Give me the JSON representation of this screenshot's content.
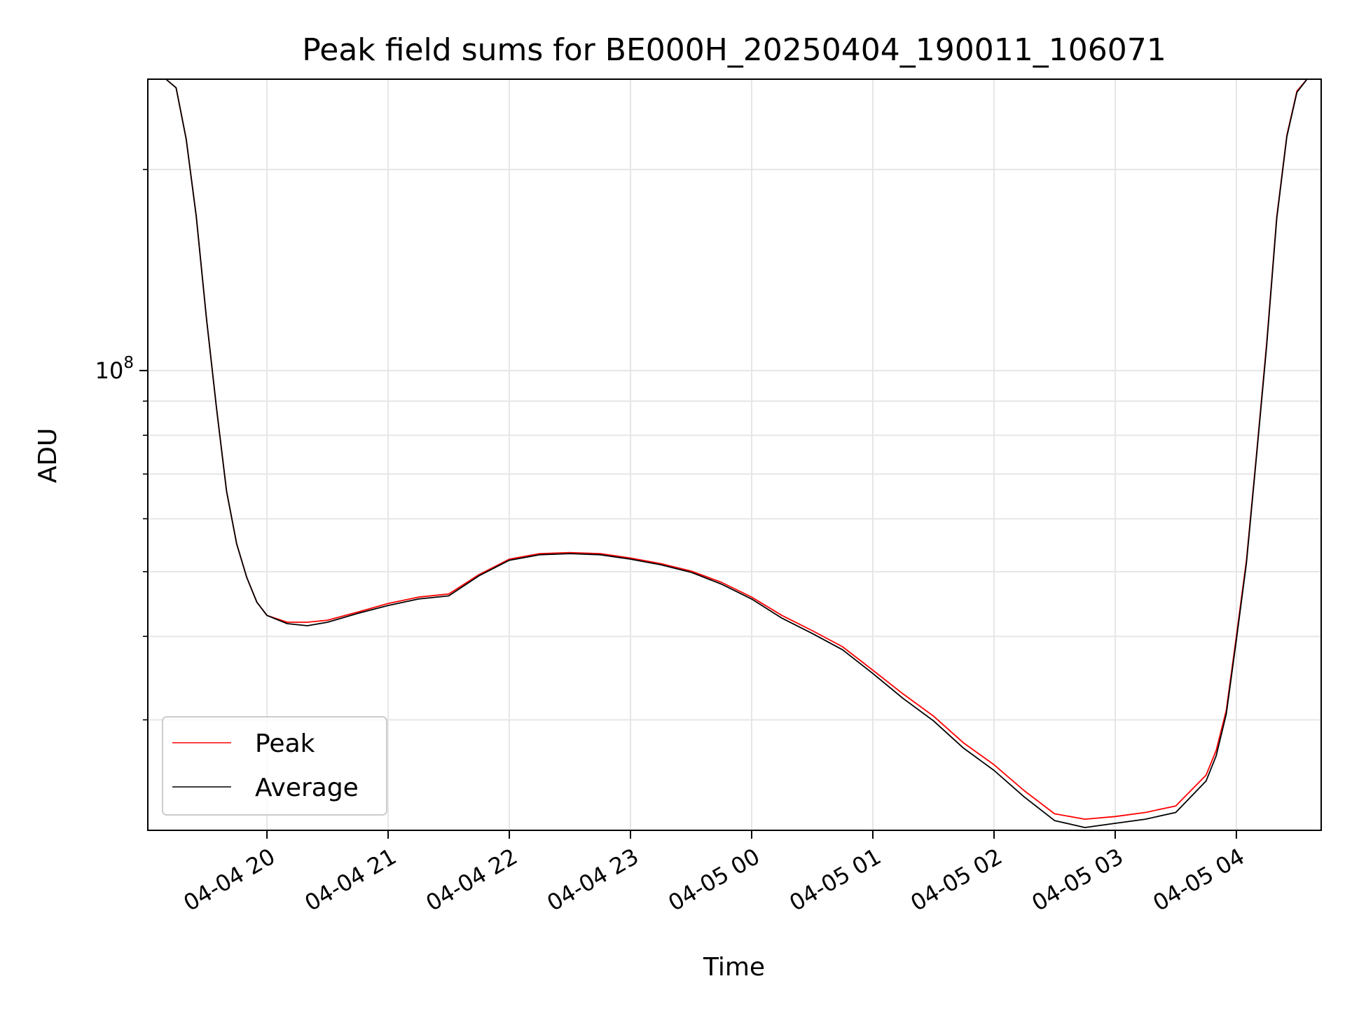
{
  "chart_data": {
    "type": "line",
    "title": "Peak field sums for BE000H_20250404_190011_106071",
    "xlabel": "Time",
    "ylabel": "ADU",
    "yscale": "log",
    "grid": true,
    "legend_position": "lower-left",
    "xlim": [
      "2025-04-04 19:01",
      "2025-04-05 04:42"
    ],
    "ylim": [
      20500000,
      273000000
    ],
    "x_ticks": [
      {
        "value": "2025-04-04 20:00",
        "label": "04-04 20"
      },
      {
        "value": "2025-04-04 21:00",
        "label": "04-04 21"
      },
      {
        "value": "2025-04-04 22:00",
        "label": "04-04 22"
      },
      {
        "value": "2025-04-04 23:00",
        "label": "04-04 23"
      },
      {
        "value": "2025-04-05 00:00",
        "label": "04-05 00"
      },
      {
        "value": "2025-04-05 01:00",
        "label": "04-05 01"
      },
      {
        "value": "2025-04-05 02:00",
        "label": "04-05 02"
      },
      {
        "value": "2025-04-05 03:00",
        "label": "04-05 03"
      },
      {
        "value": "2025-04-05 04:00",
        "label": "04-05 04"
      }
    ],
    "y_major_ticks": [
      {
        "value": 100000000,
        "base": "10",
        "exponent": "8"
      }
    ],
    "y_minor_ticks": [
      30000000,
      40000000,
      50000000,
      60000000,
      70000000,
      80000000,
      90000000,
      200000000
    ],
    "x": [
      "2025-04-04 19:01",
      "2025-04-04 19:10",
      "2025-04-04 19:15",
      "2025-04-04 19:20",
      "2025-04-04 19:25",
      "2025-04-04 19:30",
      "2025-04-04 19:35",
      "2025-04-04 19:40",
      "2025-04-04 19:45",
      "2025-04-04 19:50",
      "2025-04-04 19:55",
      "2025-04-04 20:00",
      "2025-04-04 20:10",
      "2025-04-04 20:20",
      "2025-04-04 20:30",
      "2025-04-04 20:45",
      "2025-04-04 21:00",
      "2025-04-04 21:15",
      "2025-04-04 21:30",
      "2025-04-04 21:45",
      "2025-04-04 22:00",
      "2025-04-04 22:15",
      "2025-04-04 22:30",
      "2025-04-04 22:45",
      "2025-04-04 23:00",
      "2025-04-04 23:15",
      "2025-04-04 23:30",
      "2025-04-04 23:45",
      "2025-04-05 00:00",
      "2025-04-05 00:15",
      "2025-04-05 00:30",
      "2025-04-05 00:45",
      "2025-04-05 01:00",
      "2025-04-05 01:15",
      "2025-04-05 01:30",
      "2025-04-05 01:45",
      "2025-04-05 02:00",
      "2025-04-05 02:15",
      "2025-04-05 02:30",
      "2025-04-05 02:45",
      "2025-04-05 03:00",
      "2025-04-05 03:15",
      "2025-04-05 03:30",
      "2025-04-05 03:45",
      "2025-04-05 03:50",
      "2025-04-05 03:55",
      "2025-04-05 04:00",
      "2025-04-05 04:05",
      "2025-04-05 04:10",
      "2025-04-05 04:15",
      "2025-04-05 04:20",
      "2025-04-05 04:25",
      "2025-04-05 04:30",
      "2025-04-05 04:35",
      "2025-04-05 04:42"
    ],
    "series": [
      {
        "name": "Peak",
        "color": "#ff0000",
        "values": [
          273000000,
          273000000,
          265000000,
          222000000,
          170000000,
          120000000,
          88000000,
          66000000,
          55000000,
          49000000,
          45000000,
          43000000,
          42000000,
          42000000,
          42300000,
          43500000,
          44800000,
          45800000,
          46300000,
          49500000,
          52200000,
          53200000,
          53400000,
          53200000,
          52400000,
          51400000,
          50100000,
          48200000,
          45800000,
          43000000,
          40800000,
          38600000,
          35600000,
          32800000,
          30400000,
          27700000,
          25700000,
          23500000,
          21700000,
          21300000,
          21500000,
          21800000,
          22300000,
          24800000,
          27000000,
          31000000,
          40000000,
          52000000,
          75000000,
          110000000,
          170000000,
          225000000,
          262000000,
          273000000,
          273000000
        ]
      },
      {
        "name": "Average",
        "color": "#000000",
        "values": [
          273000000,
          273000000,
          265000000,
          222000000,
          170000000,
          120000000,
          88000000,
          66000000,
          55000000,
          49000000,
          45000000,
          43000000,
          41800000,
          41500000,
          42000000,
          43300000,
          44500000,
          45500000,
          46000000,
          49300000,
          52000000,
          53000000,
          53200000,
          53000000,
          52200000,
          51200000,
          49900000,
          47900000,
          45500000,
          42600000,
          40400000,
          38200000,
          35200000,
          32300000,
          29900000,
          27200000,
          25200000,
          23000000,
          21200000,
          20700000,
          21000000,
          21300000,
          21800000,
          24300000,
          26500000,
          30600000,
          39500000,
          51500000,
          74500000,
          109000000,
          169000000,
          224000000,
          261000000,
          273000000,
          273000000
        ]
      }
    ]
  }
}
